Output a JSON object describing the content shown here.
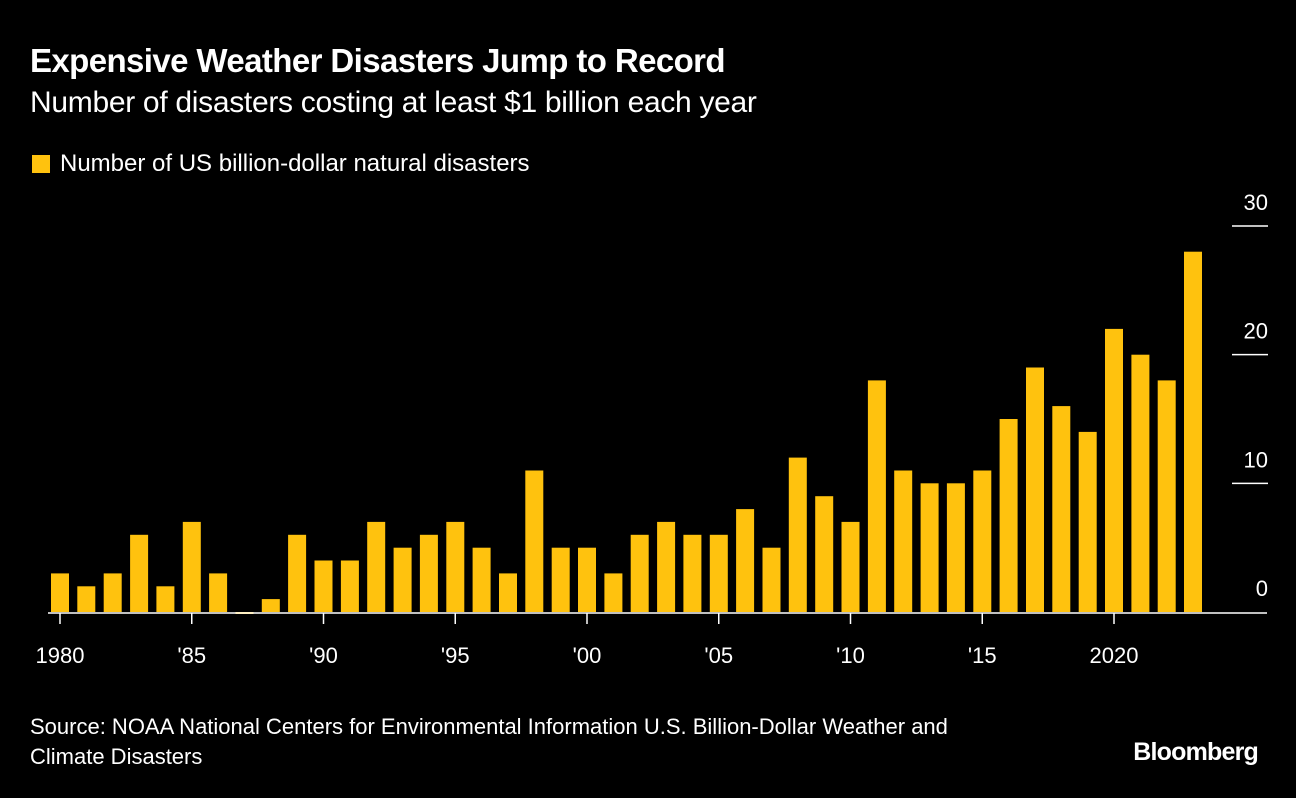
{
  "header": {
    "title": "Expensive Weather Disasters Jump to Record",
    "subtitle": "Number of disasters costing at least $1 billion each year"
  },
  "colors": {
    "background": "#000000",
    "bar": "#FFC20E",
    "axis": "#FFFFFF",
    "text": "#FFFFFF"
  },
  "chart_data": {
    "type": "bar",
    "title": "Expensive Weather Disasters Jump to Record",
    "subtitle": "Number of disasters costing at least $1 billion each year",
    "xlabel": "",
    "ylabel": "",
    "legend": {
      "placement": "top-left",
      "entries": [
        "Number of US billion-dollar natural disasters"
      ]
    },
    "categories": [
      1980,
      1981,
      1982,
      1983,
      1984,
      1985,
      1986,
      1987,
      1988,
      1989,
      1990,
      1991,
      1992,
      1993,
      1994,
      1995,
      1996,
      1997,
      1998,
      1999,
      2000,
      2001,
      2002,
      2003,
      2004,
      2005,
      2006,
      2007,
      2008,
      2009,
      2010,
      2011,
      2012,
      2013,
      2014,
      2015,
      2016,
      2017,
      2018,
      2019,
      2020,
      2021,
      2022,
      2023
    ],
    "series": [
      {
        "name": "Number of US billion-dollar natural disasters",
        "values": [
          3,
          2,
          3,
          6,
          2,
          7,
          3,
          0,
          1,
          6,
          4,
          4,
          7,
          5,
          6,
          7,
          5,
          3,
          11,
          5,
          5,
          3,
          6,
          7,
          6,
          6,
          8,
          5,
          12,
          9,
          7,
          18,
          11,
          10,
          10,
          11,
          15,
          19,
          16,
          14,
          22,
          20,
          18,
          28
        ]
      }
    ],
    "ylim": [
      0,
      30
    ],
    "y_ticks": [
      0,
      10,
      20,
      30
    ],
    "y_tick_labels": [
      "0",
      "10",
      "20",
      "30"
    ],
    "y_axis_side": "right",
    "x_ticks": [
      1980,
      1985,
      1990,
      1995,
      2000,
      2005,
      2010,
      2015,
      2020
    ],
    "x_tick_labels": [
      "1980",
      "'85",
      "'90",
      "'95",
      "'00",
      "'05",
      "'10",
      "'15",
      "2020"
    ],
    "grid": true
  },
  "footer": {
    "source": "Source: NOAA National Centers for Environmental Information U.S. Billion-Dollar Weather and Climate Disasters",
    "brand": "Bloomberg"
  }
}
